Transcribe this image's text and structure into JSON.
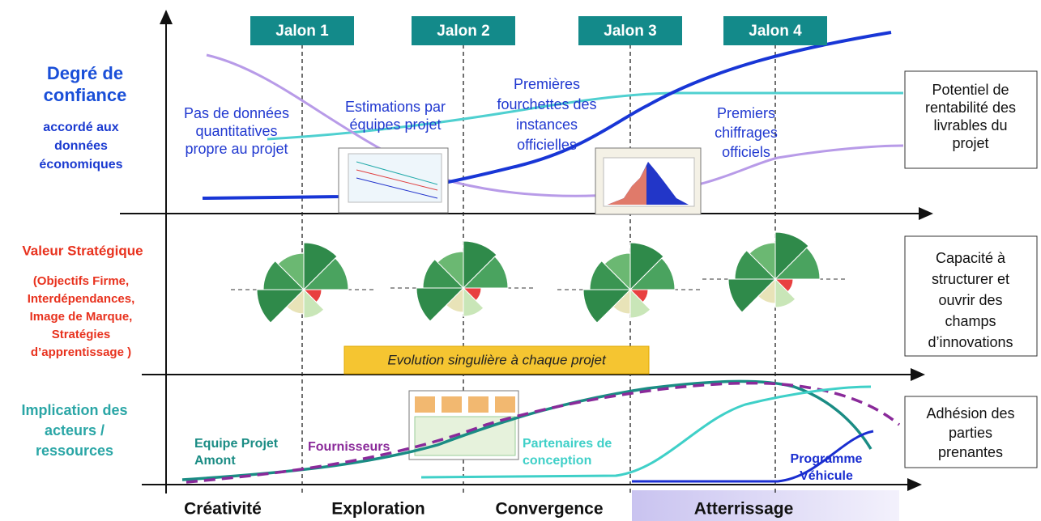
{
  "milestones": [
    "Jalon 1",
    "Jalon 2",
    "Jalon 3",
    "Jalon 4"
  ],
  "rows": [
    {
      "label": [
        "Degré de",
        "confiance"
      ],
      "sublabel": [
        "accordé aux",
        "données",
        "économiques"
      ],
      "outcome": [
        "Potentiel de",
        "rentabilité des",
        "livrables du",
        "projet"
      ]
    },
    {
      "label": [
        "Valeur Stratégique"
      ],
      "sublabel": [
        "(Objectifs Firme,",
        "Interdépendances,",
        "Image de Marque,",
        "Stratégies",
        "d’apprentissage )"
      ],
      "outcome": [
        "Capacité à",
        "structurer et",
        "ouvrir des",
        "champs",
        "d’innovations"
      ]
    },
    {
      "label": [
        "Implication des",
        "acteurs /",
        "ressources"
      ],
      "outcome": [
        "Adhésion des",
        "parties",
        "prenantes"
      ]
    }
  ],
  "annotations": [
    [
      "Pas de données",
      "quantitatives",
      "propre au projet"
    ],
    [
      "Estimations par",
      "équipes projet"
    ],
    [
      "Premières",
      "fourchettes des",
      "instances",
      "officielles"
    ],
    [
      "Premiers",
      "chiffrages",
      "officiels"
    ]
  ],
  "banner": "Evolution singulière à chaque projet",
  "actors": [
    [
      "Equipe Projet",
      "Amont"
    ],
    [
      "Fournisseurs"
    ],
    [
      "Partenaires de",
      "conception"
    ],
    [
      "Programme",
      "Véhicule"
    ]
  ],
  "phases": [
    "Créativité",
    "Exploration",
    "Convergence",
    "Atterrissage"
  ]
}
